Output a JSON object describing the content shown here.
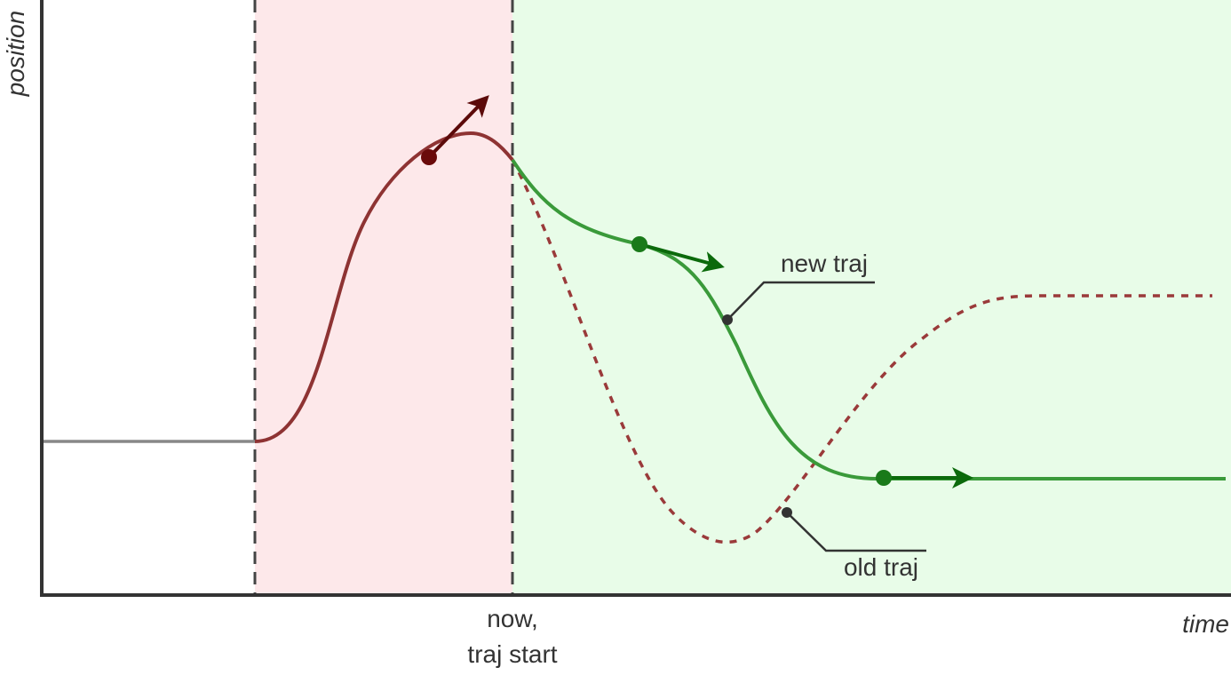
{
  "axes": {
    "y_label": "position",
    "x_label": "time"
  },
  "marker": {
    "lines": [
      "now,",
      "traj start"
    ]
  },
  "annotations": {
    "new_traj": "new traj",
    "old_traj": "old traj"
  }
}
